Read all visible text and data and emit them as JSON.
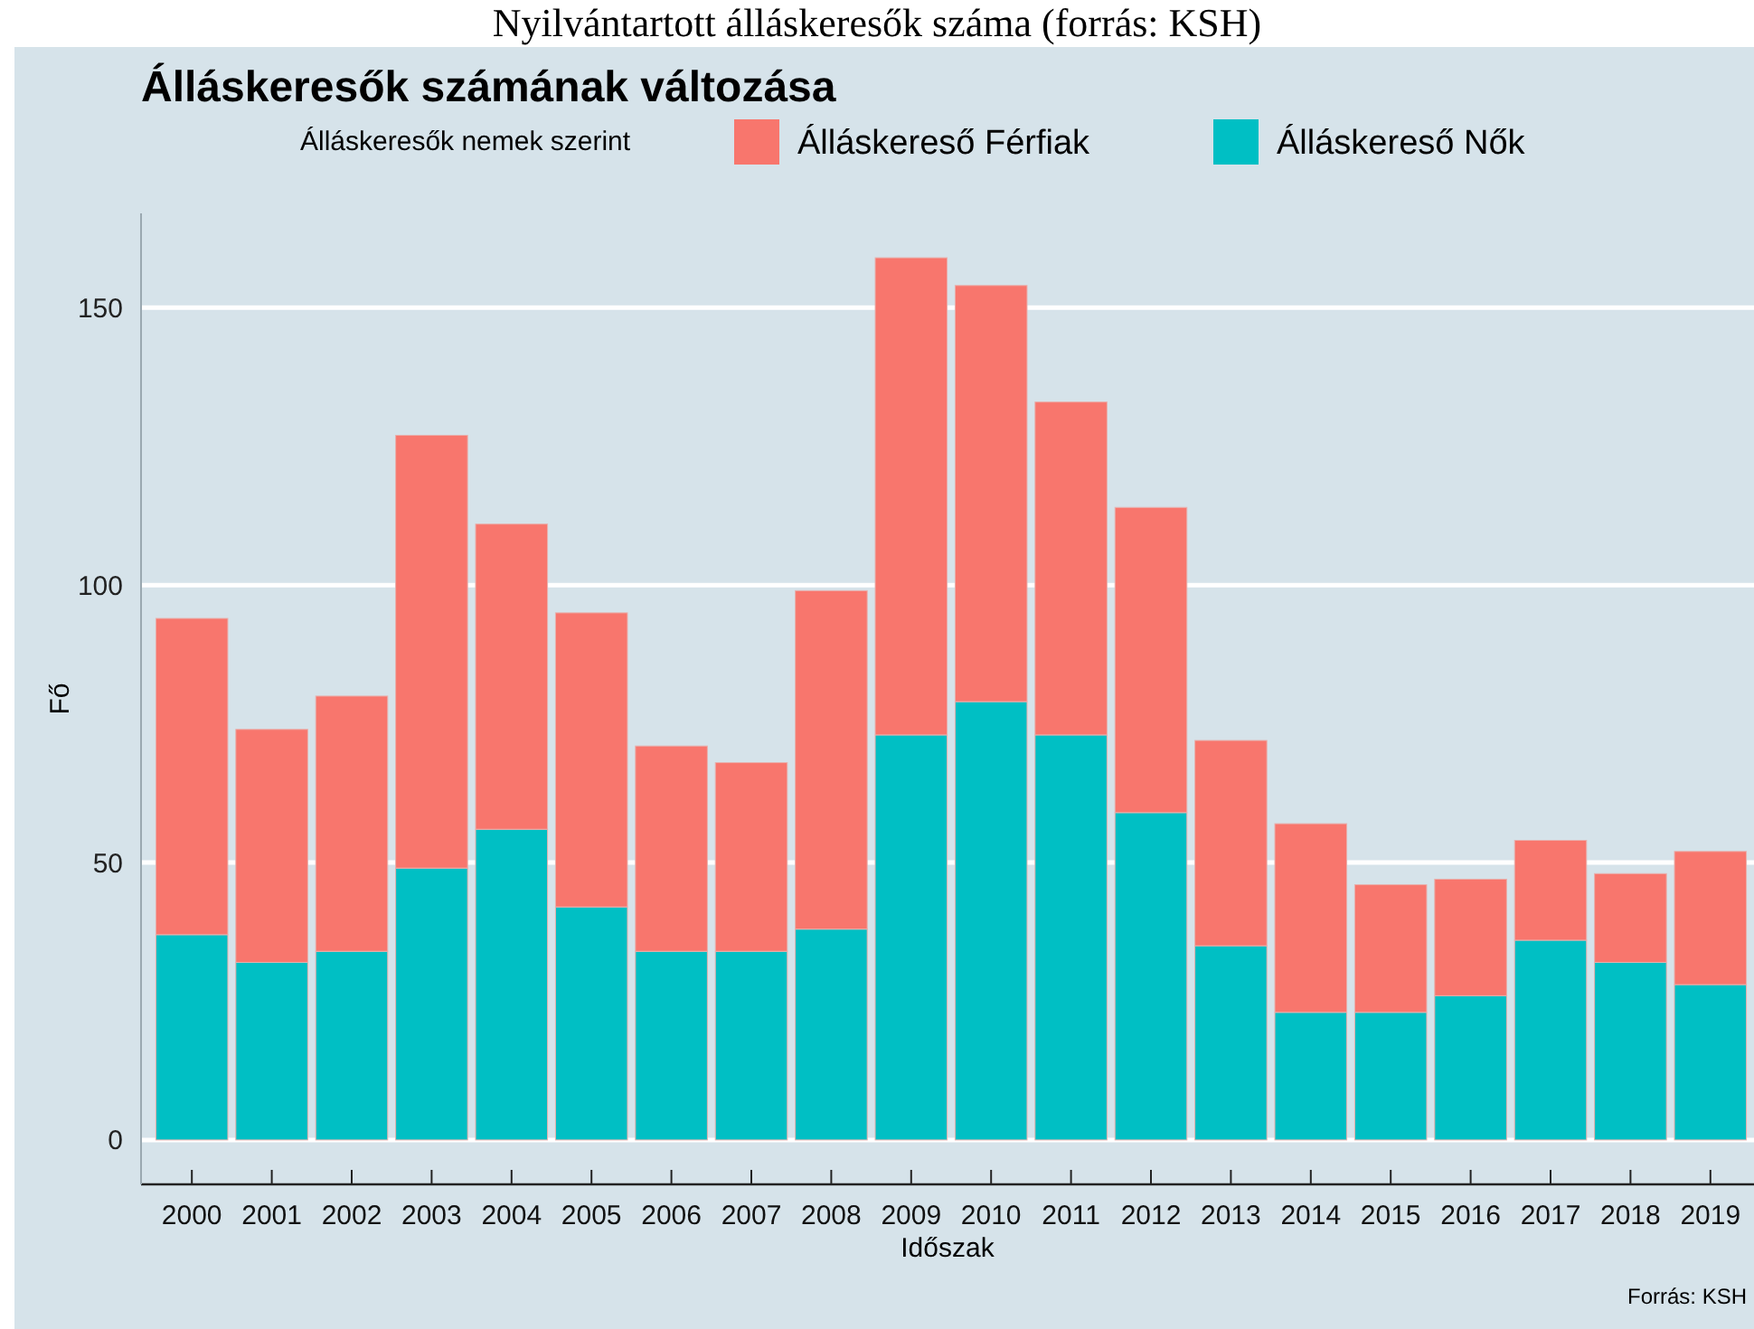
{
  "chart_data": {
    "type": "bar",
    "title": "Álláskeresők számának változása",
    "xlabel": "Időszak",
    "ylabel": "Fő",
    "legend_title": "Álláskeresők nemek szerint",
    "annotations": [
      "Nyilvántartott álláskeresők száma (forrás: KSH)",
      "Forrás: KSH"
    ],
    "categories": [
      "2000",
      "2001",
      "2002",
      "2003",
      "2004",
      "2005",
      "2006",
      "2007",
      "2008",
      "2009",
      "2010",
      "2011",
      "2012",
      "2013",
      "2014",
      "2015",
      "2016",
      "2017",
      "2018",
      "2019"
    ],
    "stacked": true,
    "series": [
      {
        "name": "Álláskereső Nők",
        "color": "#00bfc4",
        "values": [
          37,
          32,
          34,
          49,
          56,
          42,
          34,
          34,
          38,
          73,
          79,
          73,
          59,
          35,
          23,
          23,
          26,
          36,
          32,
          28
        ]
      },
      {
        "name": "Álláskereső Férfiak",
        "color": "#f8766d",
        "values": [
          57,
          42,
          46,
          78,
          55,
          53,
          37,
          34,
          61,
          86,
          75,
          60,
          55,
          37,
          34,
          23,
          21,
          18,
          16,
          24
        ]
      }
    ],
    "ylim": [
      -8,
      167
    ],
    "yticks": [
      0,
      50,
      100,
      150
    ],
    "grid": "y",
    "legend": "top"
  }
}
